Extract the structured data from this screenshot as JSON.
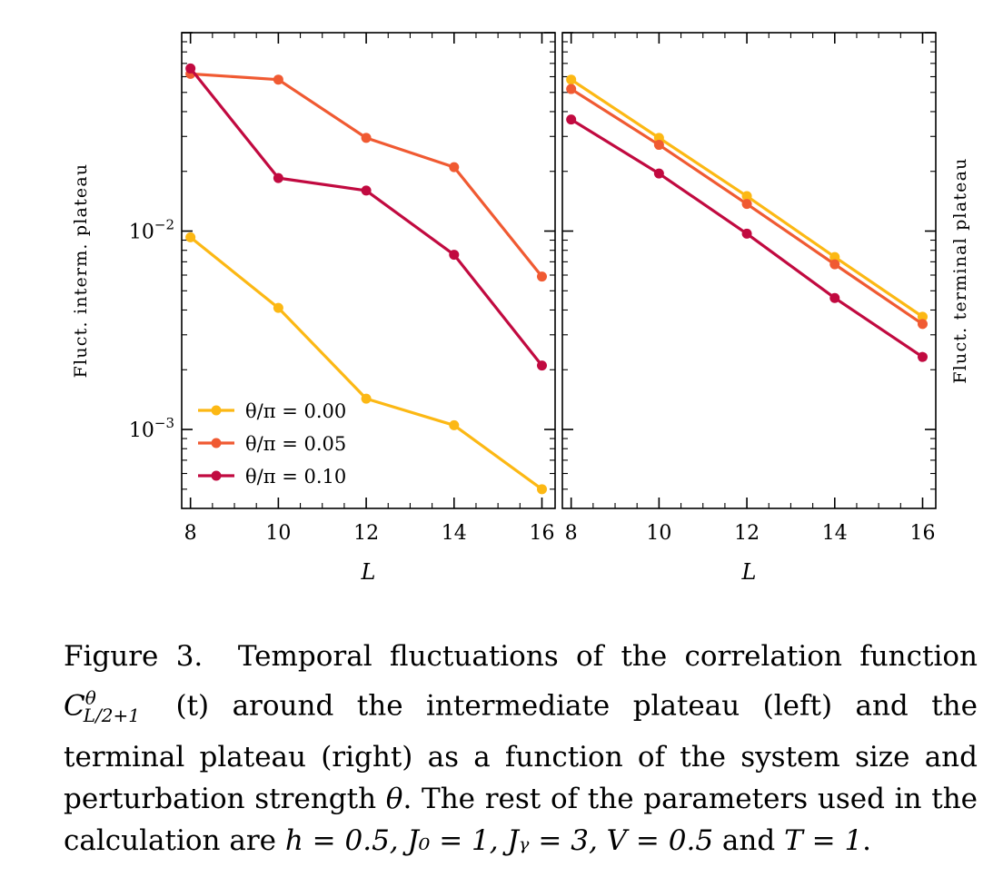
{
  "chart_data": [
    {
      "type": "line",
      "panel": "left",
      "ylabel": "Fluct. interm. plateau",
      "xlabel": "L",
      "yscale": "log",
      "ylim": [
        0.0004,
        0.1
      ],
      "xlim": [
        7.8,
        16.3
      ],
      "x": [
        8,
        10,
        12,
        14,
        16
      ],
      "xtick_labels": [
        "8",
        "10",
        "12",
        "14",
        "16"
      ],
      "ytick_labels": [
        "10^-2",
        "10^-3"
      ],
      "series": [
        {
          "name": "θ/π = 0.00",
          "color": "#fcb814",
          "values": [
            0.0093,
            0.0041,
            0.00143,
            0.00105,
            0.0005
          ]
        },
        {
          "name": "θ/π = 0.05",
          "color": "#f05a32",
          "values": [
            0.062,
            0.058,
            0.0295,
            0.021,
            0.0059
          ]
        },
        {
          "name": "θ/π = 0.10",
          "color": "#c10a40",
          "values": [
            0.066,
            0.0185,
            0.016,
            0.0076,
            0.0021
          ]
        }
      ]
    },
    {
      "type": "line",
      "panel": "right",
      "ylabel": "Fluct. terminal plateau",
      "xlabel": "L",
      "yscale": "log",
      "ylim": [
        0.0004,
        0.1
      ],
      "xlim": [
        7.8,
        16.3
      ],
      "x": [
        8,
        10,
        12,
        14,
        16
      ],
      "xtick_labels": [
        "8",
        "10",
        "12",
        "14",
        "16"
      ],
      "series": [
        {
          "name": "θ/π = 0.00",
          "color": "#fcb814",
          "values": [
            0.058,
            0.0295,
            0.015,
            0.0074,
            0.0037
          ]
        },
        {
          "name": "θ/π = 0.05",
          "color": "#f05a32",
          "values": [
            0.052,
            0.0272,
            0.0137,
            0.0068,
            0.0034
          ]
        },
        {
          "name": "θ/π = 0.10",
          "color": "#c10a40",
          "values": [
            0.0365,
            0.0195,
            0.0097,
            0.0046,
            0.00232
          ]
        }
      ]
    }
  ],
  "legend": {
    "prefix": "θ/π",
    "items": [
      {
        "symbol": "θ/π",
        "eq": "=",
        "value": "0.00"
      },
      {
        "symbol": "θ/π",
        "eq": "=",
        "value": "0.05"
      },
      {
        "symbol": "θ/π",
        "eq": "=",
        "value": "0.10"
      }
    ]
  },
  "caption": {
    "label": "Figure 3.",
    "part1": "Temporal fluctuations of the correlation function",
    "math1_base": "C",
    "math1_sup": "θ",
    "math1_sub": "L/2+1",
    "math1_arg": "(t)",
    "part2": "around the intermediate plateau (left) and the terminal plateau (right) as a function of the system size and perturbation strength",
    "math2": "θ",
    "part3": ". The rest of the parameters used in the calculation are",
    "params": "h = 0.5,  J₀ = 1,  Jᵧ = 3,  V = 0.5",
    "part4": "and",
    "params2": "T = 1",
    "end": "."
  }
}
